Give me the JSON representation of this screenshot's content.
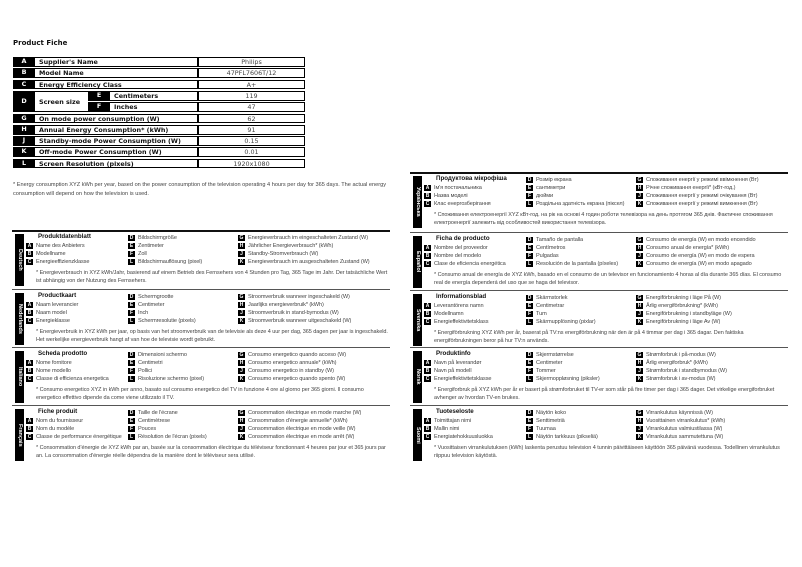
{
  "title": "Product Fiche",
  "table": [
    {
      "letter": "A",
      "label": "Supplier's Name",
      "value": "Philips"
    },
    {
      "letter": "B",
      "label": "Model Name",
      "value": "47PFL7606T/12"
    },
    {
      "letter": "C",
      "label": "Energy Efficiency Class",
      "value": "A+"
    },
    {
      "letter": "D",
      "label": "Screen size",
      "sub": [
        {
          "letter": "E",
          "label": "Centimeters",
          "value": "119"
        },
        {
          "letter": "F",
          "label": "Inches",
          "value": "47"
        }
      ]
    },
    {
      "letter": "G",
      "label": "On mode power consumption (W)",
      "value": "62"
    },
    {
      "letter": "H",
      "label": "Annual Energy Consumption* (kWh)",
      "value": "91"
    },
    {
      "letter": "J",
      "label": "Standby-mode Power Consumption (W)",
      "value": "0.15"
    },
    {
      "letter": "K",
      "label": "Off-mode Power Consumption (W)",
      "value": "0.01"
    },
    {
      "letter": "L",
      "label": "Screen Resolution (pixels)",
      "value": "1920x1080"
    }
  ],
  "footnote": "* Energy consumption XYZ kWh per year, based on the power consumption of the television operating 4 hours per day for 365 days. The actual energy consumption will depend on how the television is used.",
  "blocks": [
    {
      "lang": "Deutsch",
      "title": "Produktdatenblatt",
      "A": "Name des Anbieters",
      "B": "Modellname",
      "C": "Energieeffizienzklasse",
      "D": "Bildschirmgröße",
      "E": "Zentimeter",
      "F": "Zoll",
      "L": "Bildschirmauflösung (pixel)",
      "G": "Energieverbrauch im eingeschalteten Zustand (W)",
      "H": "Jährlicher Energieverbrauch* (kWh)",
      "J": "Standby-Stromverbrauch (W)",
      "K": "Energieverbrauch im ausgeschalteten Zustand (W)",
      "note": "* Energieverbrauch in XYZ kWh/Jahr, basierend auf einem Betrieb des Fernsehers von 4 Stunden pro Tag, 365 Tage im Jahr. Der tatsächliche Wert ist abhängig von der Nutzung des Fernsehers."
    },
    {
      "lang": "Nederlands",
      "title": "Productkaart",
      "A": "Naam leverancier",
      "B": "Naam model",
      "C": "Energieklasse",
      "D": "Schermgrootte",
      "E": "Centimeter",
      "F": "Inch",
      "L": "Schermresolutie (pixels)",
      "G": "Stroomverbruik wanneer ingeschakeld (W)",
      "H": "Jaarlijks energieverbruik* (kWh)",
      "J": "Stroomverbruik in stand-bymodus (W)",
      "K": "Stroomverbruik wanneer uitgeschakeld (W)",
      "note": "* Energieverbruik in XYZ kWh per jaar, op basis van het stroomverbruik van de televisie als deze 4 uur per dag, 365 dagen per jaar is ingeschakeld. Het werkelijke energieverbruik hangt af van hoe de televisie wordt gebruikt."
    },
    {
      "lang": "Italiano",
      "title": "Scheda prodotto",
      "A": "Nome fornitore",
      "B": "Nome modello",
      "C": "Classe di efficienza energetica",
      "D": "Dimensioni schermo",
      "E": "Centimetri",
      "F": "Pollici",
      "L": "Risoluzione schermo (pixel)",
      "G": "Consumo energetico quando acceso (W)",
      "H": "Consumo energetico annuale* (kWh)",
      "J": "Consumo energetico in standby (W)",
      "K": "Consumo energetico quando spento (W)",
      "note": "* Consumo energetico XYZ in kWh per anno, basato sul consumo energetico del TV in funzione 4 ore al giorno per 365 giorni. Il consumo energetico effettivo dipende da come viene utilizzato il TV."
    },
    {
      "lang": "Français",
      "title": "Fiche produit",
      "A": "Nom du fournisseur",
      "B": "Nom du modèle",
      "C": "Classe de performance énergétique",
      "D": "Taille de l'écrane",
      "E": "Centimètrese",
      "F": "Pouces",
      "L": "Résolution de l'écran (pixels)",
      "G": "Consommation électrique en mode marche (W)",
      "H": "Consommation d'énergie annuelle* (kWh)",
      "J": "Consommation électrique en mode veille (W)",
      "K": "Consommation électrique en mode arrêt (W)",
      "note": "* Consommation d'énergie de XYZ kWh par an, basée sur la consommation électrique du téléviseur fonctionnant 4 heures par jour et 365 jours par an. La consommation d'énergie réelle dépendra de la manière dont le téléviseur sera utilisé."
    },
    {
      "lang": "Українська",
      "title": "Продуктова мікрофіша",
      "A": "Ім'я постачальника",
      "B": "Назва моделі",
      "C": "Клас енергозберігання",
      "D": "Розмір екрана",
      "E": "сантиметри",
      "F": "дюйми",
      "L": "Роздільна здатність екрана (піксел)",
      "G": "Споживання енергії у режимі ввімкнення (Вт)",
      "H": "Річне споживання енергії* (кВт-год.)",
      "J": "Споживання енергії у режимі очікування (Вт)",
      "K": "Споживання енергії у режимі вимкнення (Вт)",
      "note": "* Споживання електроенергії XYZ кВт-год. на рік на основі 4 годин роботи телевізора на день протягом 365 днів. Фактичне споживання електроенергії залежить від особливостей використання телевізора."
    },
    {
      "lang": "Español",
      "title": "Ficha de producto",
      "A": "Nombre del proveedor",
      "B": "Nombre del modelo",
      "C": "Clase de eficiencia energética",
      "D": "Tamaño de pantalla",
      "E": "Centímetros",
      "F": "Pulgadas",
      "L": "Resolución de la pantalla (píxeles)",
      "G": "Consumo de energía (W) en modo encendido",
      "H": "Consumo anual de energía* (kWh)",
      "J": "Consumo de energía (W) en modo de espera",
      "K": "Consumo de energía (W) en modo apagado",
      "note": "* Consumo anual de energía de XYZ kWh, basado en el consumo de un televisor en funcionamiento 4 horas al día durante 365 días. El consumo real de energía dependerá del uso que se haga del televisor."
    },
    {
      "lang": "Svenska",
      "title": "Informationsblad",
      "A": "Leverantörens namn",
      "B": "Modellnamn",
      "C": "Energieffektivitetsklass",
      "D": "Skärmstorlek",
      "E": "Centimetrar",
      "F": "Tum",
      "L": "Skärmupplösning (pixlar)",
      "G": "Energiförbrukning i läge På (W)",
      "H": "Årlig energiförbrukning* (kWh)",
      "J": "Energiförbrukning i standbyläge (W)",
      "K": "Energiförbrukning i läge Av (W)",
      "note": "* Energiförbrukning XYZ kWh per år, baserat på TV:ns energiförbrukning när den är på 4 timmar per dag i 365 dagar. Den faktiska energiförbrukningen beror på hur TV:n används."
    },
    {
      "lang": "Norsk",
      "title": "Produktinfo",
      "A": "Navn på leverandør",
      "B": "Navn på modell",
      "C": "Energieffektivitetsklasse",
      "D": "Skjermstørrelse",
      "E": "Centimeter",
      "F": "Tommer",
      "L": "Skjermoppløsning (piksler)",
      "G": "Strømforbruk i på-modus (W)",
      "H": "Årlig energiforbruk* (kWh)",
      "J": "Strømforbruk i standbymodus (W)",
      "K": "Strømforbruk i av-modus (W)",
      "note": "* Energiforbruk på XYZ kWh per år er basert på strømforbruket til TV-er som står på fire timer per dag i 365 dager. Det virkelige energiforbruket avhenger av hvordan TV-en brukes."
    },
    {
      "lang": "Suomi",
      "title": "Tuoteseloste",
      "A": "Toimittajan nimi",
      "B": "Mallin nimi",
      "C": "Energiatehokkuusluokka",
      "D": "Näytön koko",
      "E": "Senttimetriä",
      "F": "Tuumaa",
      "L": "Näytön tarkkuus (pikseliä)",
      "G": "Virrankulutus käynnissä (W)",
      "H": "Vuosittainen virrankulutus* (kWh)",
      "J": "Virrankulutus valmiustilassa (W)",
      "K": "Virrankulutus sammutettuna (W)",
      "note": "* Vuosittaisen virrankulutuksen (kWh) laskenta perustuu television 4 tunnin päivittäiseen käyttöön 365 päivänä vuodessa. Todellinen virrankulutus riippuu television käytöstä."
    }
  ]
}
